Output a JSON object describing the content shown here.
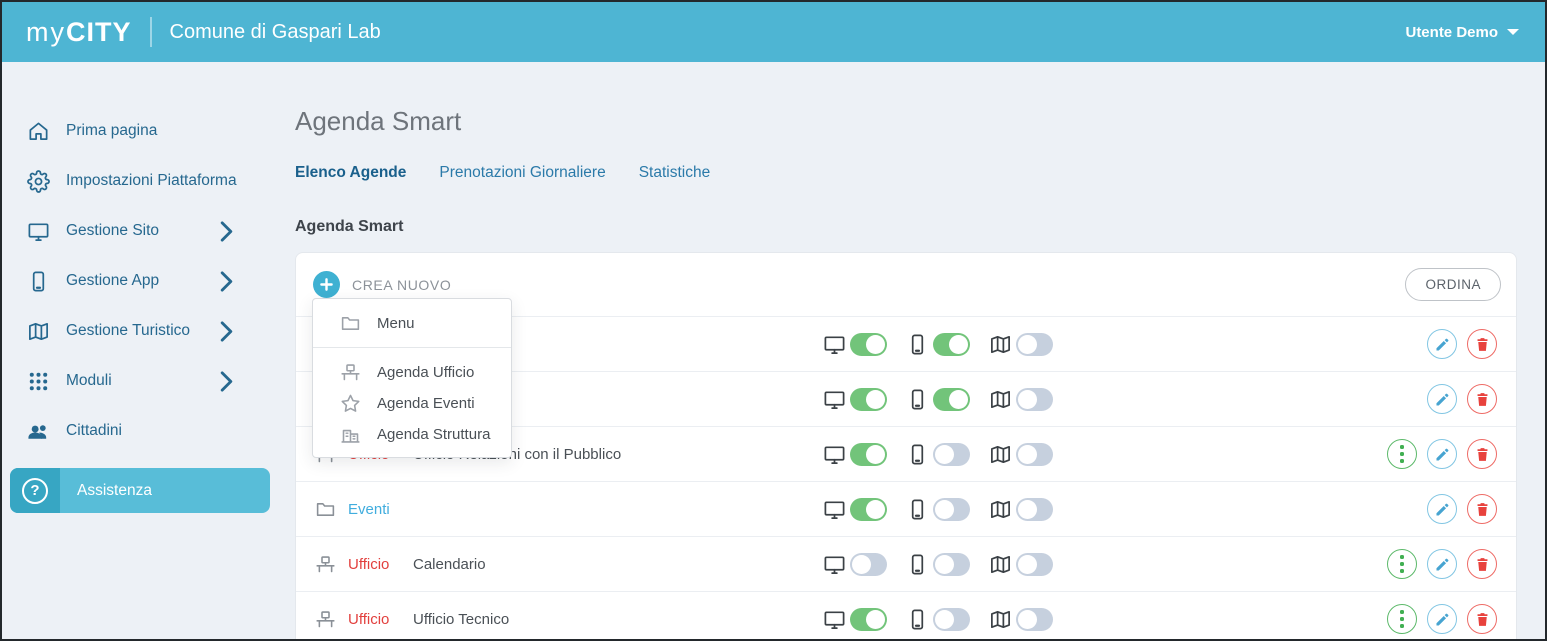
{
  "header": {
    "logo_prefix": "my",
    "logo_suffix": "CITY",
    "site_name": "Comune di Gaspari Lab",
    "user_menu_label": "Utente Demo"
  },
  "sidebar": {
    "items": [
      {
        "label": "Prima pagina",
        "icon": "home-icon",
        "expandable": false
      },
      {
        "label": "Impostazioni Piattaforma",
        "icon": "gear-icon",
        "expandable": false
      },
      {
        "label": "Gestione Sito",
        "icon": "monitor-icon",
        "expandable": true
      },
      {
        "label": "Gestione App",
        "icon": "smartphone-icon",
        "expandable": true
      },
      {
        "label": "Gestione Turistico",
        "icon": "map-icon",
        "expandable": true
      },
      {
        "label": "Moduli",
        "icon": "grid-icon",
        "expandable": true
      },
      {
        "label": "Cittadini",
        "icon": "users-icon",
        "expandable": false
      }
    ],
    "assistance": {
      "label": "Assistenza",
      "icon": "question-icon"
    }
  },
  "main": {
    "page_title": "Agenda Smart",
    "tabs": [
      {
        "label": "Elenco Agende",
        "active": true
      },
      {
        "label": "Prenotazioni Giornaliere",
        "active": false
      },
      {
        "label": "Statistiche",
        "active": false
      }
    ],
    "section_title": "Agenda Smart",
    "toolbar": {
      "create_label": "CREA NUOVO",
      "order_label": "ORDINA"
    },
    "create_menu": {
      "primary": {
        "label": "Menu",
        "icon": "folder-icon"
      },
      "items": [
        {
          "label": "Agenda Ufficio",
          "icon": "desk-icon"
        },
        {
          "label": "Agenda Eventi",
          "icon": "star-icon"
        },
        {
          "label": "Agenda Struttura",
          "icon": "building-icon"
        }
      ]
    },
    "rows": [
      {
        "icon": "",
        "category": "",
        "name": "",
        "link": false,
        "has_menu": false,
        "toggles": {
          "site": true,
          "app": true,
          "map": false
        }
      },
      {
        "icon": "",
        "category": "",
        "name": "",
        "link": false,
        "has_menu": false,
        "toggles": {
          "site": true,
          "app": true,
          "map": false
        }
      },
      {
        "icon": "desk-icon",
        "category": "Ufficio",
        "name": "Ufficio Relazioni con il Pubblico",
        "link": false,
        "has_menu": true,
        "toggles": {
          "site": true,
          "app": false,
          "map": false
        }
      },
      {
        "icon": "folder-icon",
        "category": "",
        "name": "Eventi",
        "link": true,
        "has_menu": false,
        "toggles": {
          "site": true,
          "app": false,
          "map": false
        }
      },
      {
        "icon": "desk-icon",
        "category": "Ufficio",
        "name": "Calendario",
        "link": false,
        "has_menu": true,
        "toggles": {
          "site": false,
          "app": false,
          "map": false
        }
      },
      {
        "icon": "desk-icon",
        "category": "Ufficio",
        "name": "Ufficio Tecnico",
        "link": false,
        "has_menu": true,
        "toggles": {
          "site": true,
          "app": false,
          "map": false
        }
      }
    ]
  },
  "colors": {
    "brand_teal": "#4eb5d3",
    "assist_dark_teal": "#37a6c3",
    "assist_light_teal": "#58bdd8",
    "sidebar_text": "#26688f",
    "toggle_on_green": "#72c47a",
    "toggle_off_gray": "#c6d0de",
    "danger_red": "#e2403e",
    "edit_blue": "#47a4d1",
    "menu_green": "#41af52",
    "link_blue": "#41adde"
  }
}
